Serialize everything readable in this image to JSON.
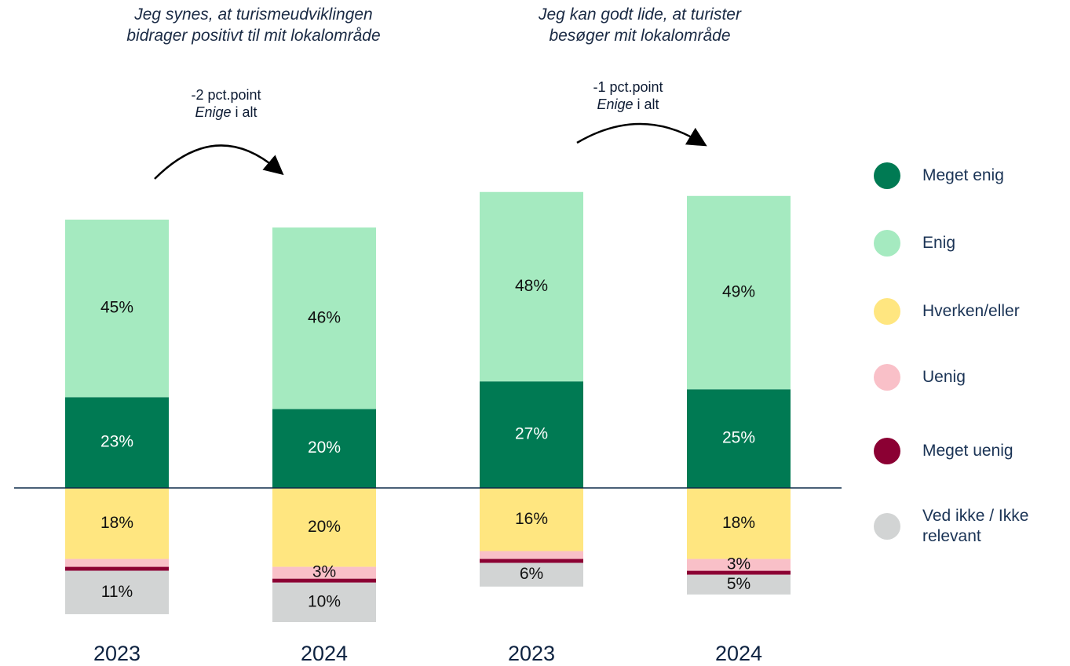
{
  "chart_data": {
    "type": "diverging_stacked_bar",
    "categories": [
      "2023",
      "2024",
      "2023",
      "2024"
    ],
    "annotations": [
      {
        "title": "Jeg synes, at turismeudviklingen bidrager positivt til mit lokalområde",
        "change": "-2 pct.point",
        "note_italic": "Enige",
        "note": "i alt"
      },
      {
        "title": "Jeg kan godt lide, at turister besøger mit lokalområde",
        "change": "-1 pct.point",
        "note_italic": "Enige",
        "note": "i alt"
      }
    ],
    "series": [
      {
        "name": "Meget enig",
        "color": "#007a53",
        "direction": "up",
        "values": [
          23,
          20,
          27,
          25
        ],
        "value_labels": [
          "23%",
          "20%",
          "27%",
          "25%"
        ]
      },
      {
        "name": "Enig",
        "color": "#a5eac0",
        "direction": "up",
        "values": [
          45,
          46,
          48,
          49
        ],
        "value_labels": [
          "45%",
          "46%",
          "48%",
          "49%"
        ]
      },
      {
        "name": "Hverken/eller",
        "color": "#ffe680",
        "direction": "down",
        "values": [
          18,
          20,
          16,
          18
        ],
        "value_labels": [
          "18%",
          "20%",
          "16%",
          "18%"
        ]
      },
      {
        "name": "Uenig",
        "color": "#f9c0c8",
        "direction": "down",
        "values": [
          2,
          3,
          2,
          3
        ],
        "value_labels": [
          null,
          "3%",
          null,
          "3%"
        ]
      },
      {
        "name": "Meget uenig",
        "color": "#8b0033",
        "direction": "down",
        "values": [
          1,
          1,
          1,
          1
        ],
        "value_labels": [
          null,
          null,
          null,
          null
        ]
      },
      {
        "name": "Ved ikke / Ikke relevant",
        "color": "#d2d4d4",
        "direction": "down",
        "values": [
          11,
          10,
          6,
          5
        ],
        "value_labels": [
          "11%",
          "10%",
          "6%",
          "5%"
        ]
      }
    ]
  }
}
